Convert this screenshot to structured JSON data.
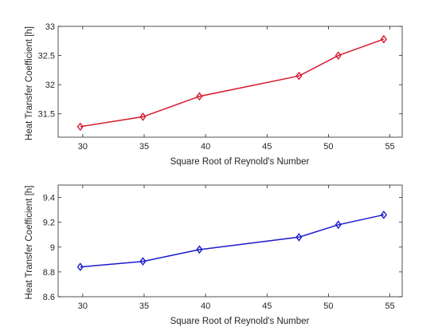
{
  "chart_data": [
    {
      "type": "line",
      "title": "",
      "xlabel": "Square Root of Reynold's Number",
      "ylabel": "Heat Transfer Coefficient [h]",
      "xlim": [
        28,
        56
      ],
      "ylim": [
        31.1,
        33
      ],
      "xticks": [
        30,
        35,
        40,
        45,
        50,
        55
      ],
      "yticks": [
        31.5,
        32,
        32.5,
        33
      ],
      "ytick_labels": [
        "31.5",
        "32",
        "32.5",
        "33"
      ],
      "grid": false,
      "legend": "none",
      "series": [
        {
          "color": "#d7192e",
          "marker": "diamond",
          "x": [
            29.8,
            34.9,
            39.5,
            47.6,
            50.8,
            54.5
          ],
          "y": [
            31.28,
            31.45,
            31.8,
            32.15,
            32.5,
            32.78
          ]
        }
      ]
    },
    {
      "type": "line",
      "title": "",
      "xlabel": "Square Root of Reynold's Number",
      "ylabel": "Heat Transfer Coefficient [h]",
      "xlim": [
        28,
        56
      ],
      "ylim": [
        8.6,
        9.5
      ],
      "xticks": [
        30,
        35,
        40,
        45,
        50,
        55
      ],
      "yticks": [
        8.6,
        8.8,
        9,
        9.2,
        9.4
      ],
      "ytick_labels": [
        "8.6",
        "8.8",
        "9",
        "9.2",
        "9.4"
      ],
      "grid": false,
      "legend": "none",
      "series": [
        {
          "color": "#1a1ad0",
          "marker": "diamond",
          "x": [
            29.8,
            34.9,
            39.5,
            47.6,
            50.8,
            54.5
          ],
          "y": [
            8.84,
            8.885,
            8.98,
            9.08,
            9.18,
            9.26
          ]
        }
      ]
    }
  ]
}
